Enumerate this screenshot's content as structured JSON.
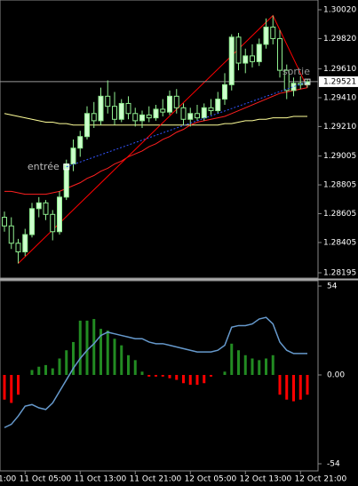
{
  "chart_data": [
    {
      "type": "candlestick",
      "up_color": "#ccffcc",
      "down_color": "#000000",
      "outline_color": "#90ee90",
      "open": [
        1.2858,
        1.2852,
        1.284,
        1.2834,
        1.2846,
        1.2864,
        1.2868,
        1.286,
        1.2848,
        1.2872,
        1.2895,
        1.2906,
        1.2914,
        1.293,
        1.2925,
        1.2942,
        1.2935,
        1.2926,
        1.2937,
        1.293,
        1.2925,
        1.2929,
        1.2927,
        1.2933,
        1.2931,
        1.2942,
        1.2934,
        1.2926,
        1.293,
        1.2927,
        1.2934,
        1.2932,
        1.294,
        1.295,
        1.2983,
        1.2965,
        1.297,
        1.2966,
        1.2978,
        1.299,
        1.2982,
        1.296,
        1.2946,
        1.2951,
        1.295
      ],
      "high": [
        1.2862,
        1.2858,
        1.2843,
        1.285,
        1.2868,
        1.2872,
        1.287,
        1.2863,
        1.2876,
        1.2898,
        1.2912,
        1.2918,
        1.2935,
        1.2938,
        1.2948,
        1.2953,
        1.2945,
        1.294,
        1.2942,
        1.2934,
        1.2932,
        1.2935,
        1.2936,
        1.294,
        1.2946,
        1.2947,
        1.2937,
        1.2934,
        1.2936,
        1.2937,
        1.294,
        1.2945,
        1.2958,
        1.2985,
        1.2986,
        1.2975,
        1.2978,
        1.2982,
        1.2996,
        1.2998,
        1.2988,
        1.2964,
        1.2955,
        1.2956,
        1.2954
      ],
      "low": [
        1.2848,
        1.2836,
        1.2826,
        1.2831,
        1.2844,
        1.2858,
        1.2856,
        1.2842,
        1.2846,
        1.287,
        1.289,
        1.29,
        1.2912,
        1.292,
        1.2922,
        1.293,
        1.2922,
        1.2924,
        1.2926,
        1.2921,
        1.292,
        1.2924,
        1.2925,
        1.2928,
        1.2929,
        1.293,
        1.2922,
        1.2921,
        1.2925,
        1.2925,
        1.2929,
        1.293,
        1.2936,
        1.2946,
        1.296,
        1.2958,
        1.2962,
        1.2963,
        1.2975,
        1.2978,
        1.2955,
        1.294,
        1.2942,
        1.2947,
        1.2948
      ],
      "close": [
        1.2852,
        1.284,
        1.2834,
        1.2846,
        1.2864,
        1.2868,
        1.286,
        1.2848,
        1.2872,
        1.2895,
        1.2906,
        1.2914,
        1.293,
        1.2925,
        1.2942,
        1.2935,
        1.2926,
        1.2937,
        1.293,
        1.2925,
        1.2929,
        1.2927,
        1.2933,
        1.2931,
        1.2942,
        1.2934,
        1.2926,
        1.293,
        1.2927,
        1.2934,
        1.2932,
        1.294,
        1.295,
        1.2983,
        1.2965,
        1.297,
        1.2966,
        1.2978,
        1.299,
        1.2982,
        1.296,
        1.2946,
        1.2951,
        1.295,
        1.2952
      ],
      "series": [
        {
          "color": "#ffff99",
          "values": [
            1.293,
            1.2929,
            1.2928,
            1.2927,
            1.2926,
            1.2925,
            1.2924,
            1.2924,
            1.2923,
            1.2923,
            1.2922,
            1.2922,
            1.2922,
            1.2922,
            1.2922,
            1.2922,
            1.2922,
            1.2922,
            1.2922,
            1.2922,
            1.2922,
            1.2922,
            1.2922,
            1.2922,
            1.2922,
            1.2922,
            1.2922,
            1.2922,
            1.2922,
            1.2922,
            1.2922,
            1.2922,
            1.2923,
            1.2923,
            1.2924,
            1.2925,
            1.2925,
            1.2926,
            1.2926,
            1.2927,
            1.2927,
            1.2927,
            1.2928,
            1.2928,
            1.2928
          ]
        },
        {
          "color": "#ff2020",
          "values": [
            1.2876,
            1.2876,
            1.2875,
            1.2874,
            1.2874,
            1.2874,
            1.2874,
            1.2875,
            1.2876,
            1.2878,
            1.288,
            1.2882,
            1.2885,
            1.2887,
            1.289,
            1.2892,
            1.2895,
            1.2897,
            1.29,
            1.2902,
            1.2904,
            1.2907,
            1.2909,
            1.2912,
            1.2914,
            1.2917,
            1.2919,
            1.2922,
            1.2924,
            1.2925,
            1.2926,
            1.2927,
            1.2928,
            1.293,
            1.2932,
            1.2934,
            1.2936,
            1.2938,
            1.294,
            1.2942,
            1.2944,
            1.2945,
            1.2946,
            1.2947,
            1.2948
          ]
        }
      ],
      "zigzag": {
        "color": "#ff0000",
        "x": [
          2,
          39,
          44
        ],
        "values": [
          1.2826,
          1.2998,
          1.2948
        ]
      },
      "trade": {
        "color": "#3355ff",
        "entry": {
          "label": "entrée",
          "price": 1.2893
        },
        "exit": {
          "label": "sortie",
          "price": 1.2952
        }
      },
      "last_price": {
        "value": 1.29521,
        "label": "1.29521"
      },
      "ylim": [
        1.28195,
        1.3002
      ],
      "yticks": [
        {
          "value": 1.3002,
          "label": "1.30020"
        },
        {
          "value": 1.2982,
          "label": "1.29820"
        },
        {
          "value": 1.2961,
          "label": "1.29610"
        },
        {
          "value": 1.2941,
          "label": "1.29410"
        },
        {
          "value": 1.2921,
          "label": "1.29210"
        },
        {
          "value": 1.29005,
          "label": "1.29005"
        },
        {
          "value": 1.28805,
          "label": "1.28805"
        },
        {
          "value": 1.28605,
          "label": "1.28605"
        },
        {
          "value": 1.28405,
          "label": "1.28405"
        },
        {
          "value": 1.28195,
          "label": "1.28195"
        }
      ],
      "xticks": [
        {
          "value": -5,
          "label": "1:00"
        },
        {
          "value": 3,
          "label": "11 Oct 05:00"
        },
        {
          "value": 11,
          "label": "11 Oct 13:00"
        },
        {
          "value": 19,
          "label": "11 Oct 21:00"
        },
        {
          "value": 27,
          "label": "12 Oct 05:00"
        },
        {
          "value": 35,
          "label": "12 Oct 13:00"
        },
        {
          "value": 43,
          "label": "12 Oct 21:00"
        }
      ]
    },
    {
      "type": "bar",
      "positive_color": "#228b22",
      "negative_color": "#ff0000",
      "values": [
        -15,
        -17,
        -12,
        0,
        3,
        5,
        6,
        4,
        10,
        15,
        20,
        33,
        33,
        34,
        28,
        27,
        22,
        18,
        12,
        9,
        2,
        -1,
        -1,
        -1,
        -2,
        -3,
        -5,
        -6,
        -6,
        -5,
        -1,
        0,
        2,
        19,
        15,
        12,
        10,
        9,
        10,
        12,
        -12,
        -15,
        -16,
        -15,
        -12
      ],
      "line": {
        "color": "#6699cc",
        "values": [
          -32,
          -30,
          -25,
          -19,
          -18,
          -20,
          -21,
          -17,
          -10,
          -3,
          4,
          10,
          15,
          19,
          24,
          26,
          25,
          24,
          23,
          22,
          22,
          20,
          19,
          19,
          18,
          17,
          16,
          15,
          14,
          14,
          14,
          15,
          18,
          29,
          30,
          30,
          31,
          34,
          35,
          31,
          20,
          15,
          13,
          13,
          13
        ]
      },
      "ylim": [
        -54,
        54
      ],
      "yticks": [
        54,
        {
          "value": 0,
          "label": "0.00"
        },
        -54
      ]
    }
  ]
}
